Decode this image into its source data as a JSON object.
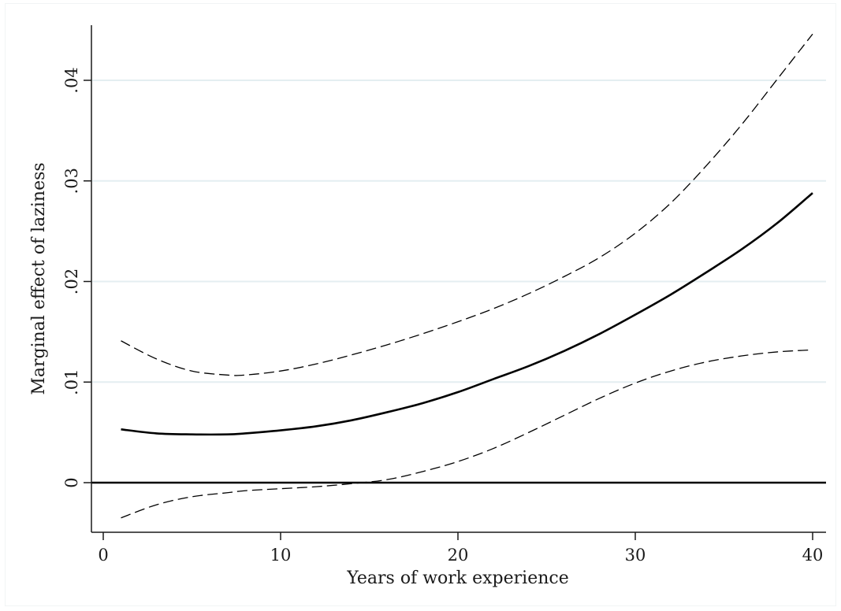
{
  "chart_data": {
    "type": "line",
    "title": "",
    "xlabel": "Years of work experience",
    "ylabel": "Marginal effect of laziness",
    "xlim": [
      0,
      40.5
    ],
    "ylim": [
      -0.0048,
      0.0465
    ],
    "x_ticks": [
      0,
      10,
      20,
      30,
      40
    ],
    "x_tick_labels": [
      "0",
      "10",
      "20",
      "30",
      "40"
    ],
    "y_ticks": [
      0,
      0.01,
      0.02,
      0.03,
      0.04
    ],
    "y_tick_labels": [
      "0",
      ".01",
      ".02",
      ".03",
      ".04"
    ],
    "grid": "horizontal",
    "legend": "none",
    "reference_line_y": 0,
    "series": [
      {
        "style": "solid",
        "x": [
          1,
          3,
          5,
          7,
          8,
          10,
          12,
          14,
          16,
          18,
          20,
          22,
          24,
          26,
          28,
          30,
          32,
          34,
          36,
          38,
          40
        ],
        "values": [
          0.0053,
          0.0049,
          0.0048,
          0.0048,
          0.0049,
          0.0052,
          0.0056,
          0.0062,
          0.007,
          0.0079,
          0.009,
          0.0103,
          0.0116,
          0.0131,
          0.0148,
          0.0167,
          0.0187,
          0.0209,
          0.0232,
          0.0258,
          0.0288
        ]
      },
      {
        "style": "dashed",
        "x": [
          1,
          3,
          5,
          7,
          8,
          10,
          12,
          14,
          16,
          18,
          20,
          22,
          24,
          26,
          28,
          30,
          32,
          34,
          36,
          38,
          40
        ],
        "values": [
          0.0141,
          0.0123,
          0.0111,
          0.0107,
          0.0107,
          0.0111,
          0.0118,
          0.0127,
          0.0137,
          0.0148,
          0.016,
          0.0173,
          0.0188,
          0.0205,
          0.0224,
          0.0248,
          0.0278,
          0.0315,
          0.0356,
          0.0401,
          0.0446
        ]
      },
      {
        "style": "dashed",
        "x": [
          1,
          3,
          5,
          7,
          8,
          10,
          12,
          14,
          16,
          18,
          20,
          22,
          24,
          26,
          28,
          30,
          32,
          34,
          36,
          38,
          40
        ],
        "values": [
          -0.0035,
          -0.0022,
          -0.0014,
          -0.001,
          -0.0008,
          -0.0006,
          -0.0004,
          -0.0001,
          0.0003,
          0.0011,
          0.0021,
          0.0034,
          0.005,
          0.0067,
          0.0084,
          0.0099,
          0.0111,
          0.012,
          0.0126,
          0.013,
          0.0132
        ]
      }
    ]
  }
}
